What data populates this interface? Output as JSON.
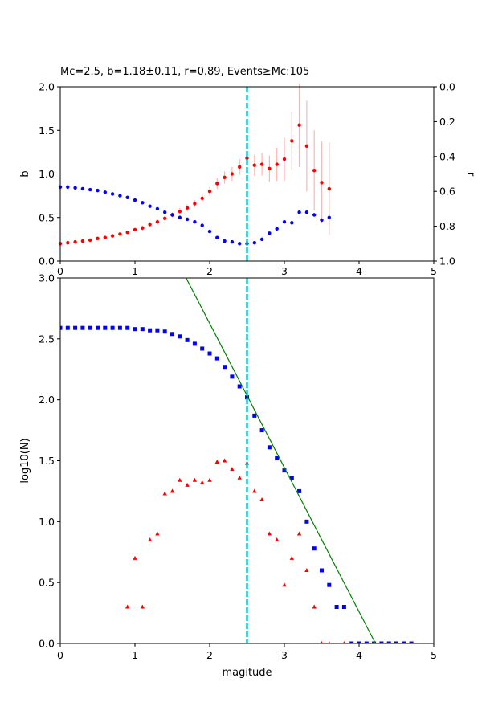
{
  "colors": {
    "b_series": "#ff0000",
    "r_series": "#0000ff",
    "b_errorbar": "#ffb3b3",
    "cumulative": "#0000ff",
    "noncumulative": "#ff0000",
    "fit_line": "#008000",
    "mc_line": "#00bfbf"
  },
  "chart_data": [
    {
      "type": "scatter",
      "title": "Mc=2.5, b=1.18±0.11, r=0.89, Events≥Mc:105",
      "xlabel": "",
      "ylabel": "b",
      "ylabel_right": "r",
      "xlim": [
        0,
        5
      ],
      "ylim": [
        0,
        2
      ],
      "ylim_right": [
        1,
        0
      ],
      "x_ticks": [
        "0",
        "1",
        "2",
        "3",
        "4",
        "5"
      ],
      "y_ticks": [
        "0.0",
        "0.5",
        "1.0",
        "1.5",
        "2.0"
      ],
      "y_ticks_right": [
        "0.0",
        "0.2",
        "0.4",
        "0.6",
        "0.8",
        "1.0"
      ],
      "grid": false,
      "mc_line_x": 2.5,
      "series": [
        {
          "name": "b",
          "axis": "left",
          "marker": "circle",
          "x": [
            0.0,
            0.1,
            0.2,
            0.3,
            0.4,
            0.5,
            0.6,
            0.7,
            0.8,
            0.9,
            1.0,
            1.1,
            1.2,
            1.3,
            1.4,
            1.5,
            1.6,
            1.7,
            1.8,
            1.9,
            2.0,
            2.1,
            2.2,
            2.3,
            2.4,
            2.5,
            2.6,
            2.7,
            2.8,
            2.9,
            3.0,
            3.1,
            3.2,
            3.3,
            3.4,
            3.5,
            3.6
          ],
          "y": [
            0.2,
            0.21,
            0.22,
            0.23,
            0.24,
            0.26,
            0.27,
            0.29,
            0.31,
            0.33,
            0.36,
            0.38,
            0.42,
            0.45,
            0.49,
            0.53,
            0.57,
            0.61,
            0.66,
            0.72,
            0.8,
            0.89,
            0.96,
            1.0,
            1.08,
            1.18,
            1.1,
            1.11,
            1.06,
            1.11,
            1.17,
            1.38,
            1.56,
            1.32,
            1.04,
            0.9,
            0.83
          ],
          "err": [
            0.02,
            0.02,
            0.02,
            0.02,
            0.02,
            0.02,
            0.02,
            0.02,
            0.02,
            0.02,
            0.02,
            0.03,
            0.03,
            0.03,
            0.03,
            0.03,
            0.04,
            0.04,
            0.04,
            0.05,
            0.05,
            0.06,
            0.07,
            0.08,
            0.09,
            0.11,
            0.12,
            0.13,
            0.15,
            0.19,
            0.25,
            0.33,
            0.48,
            0.52,
            0.46,
            0.47,
            0.53
          ]
        },
        {
          "name": "r",
          "axis": "right",
          "marker": "circle",
          "x": [
            0.0,
            0.1,
            0.2,
            0.3,
            0.4,
            0.5,
            0.6,
            0.7,
            0.8,
            0.9,
            1.0,
            1.1,
            1.2,
            1.3,
            1.4,
            1.5,
            1.6,
            1.7,
            1.8,
            1.9,
            2.0,
            2.1,
            2.2,
            2.3,
            2.4,
            2.5,
            2.6,
            2.7,
            2.8,
            2.9,
            3.0,
            3.1,
            3.2,
            3.3,
            3.4,
            3.5,
            3.6
          ],
          "y": [
            0.575,
            0.575,
            0.58,
            0.585,
            0.59,
            0.595,
            0.605,
            0.615,
            0.625,
            0.635,
            0.65,
            0.665,
            0.685,
            0.7,
            0.72,
            0.735,
            0.75,
            0.76,
            0.775,
            0.795,
            0.83,
            0.865,
            0.885,
            0.89,
            0.9,
            0.9,
            0.895,
            0.875,
            0.84,
            0.815,
            0.775,
            0.78,
            0.72,
            0.72,
            0.735,
            0.765,
            0.75
          ]
        }
      ]
    },
    {
      "type": "scatter",
      "title": "",
      "xlabel": "magitude",
      "ylabel": "log10(N)",
      "xlim": [
        0,
        5
      ],
      "ylim": [
        0,
        3
      ],
      "x_ticks": [
        "0",
        "1",
        "2",
        "3",
        "4",
        "5"
      ],
      "y_ticks": [
        "0.0",
        "0.5",
        "1.0",
        "1.5",
        "2.0",
        "2.5",
        "3.0"
      ],
      "grid": false,
      "mc_line_x": 2.5,
      "fit_line": {
        "x": [
          1.6,
          4.22
        ],
        "y": [
          3.1,
          0.0
        ]
      },
      "series": [
        {
          "name": "cumulative",
          "marker": "square",
          "x": [
            0.0,
            0.1,
            0.2,
            0.3,
            0.4,
            0.5,
            0.6,
            0.7,
            0.8,
            0.9,
            1.0,
            1.1,
            1.2,
            1.3,
            1.4,
            1.5,
            1.6,
            1.7,
            1.8,
            1.9,
            2.0,
            2.1,
            2.2,
            2.3,
            2.4,
            2.5,
            2.6,
            2.7,
            2.8,
            2.9,
            3.0,
            3.1,
            3.2,
            3.3,
            3.4,
            3.5,
            3.6,
            3.7,
            3.8,
            3.9,
            4.0,
            4.1,
            4.2,
            4.3,
            4.4,
            4.5,
            4.6,
            4.7
          ],
          "y": [
            2.59,
            2.59,
            2.59,
            2.59,
            2.59,
            2.59,
            2.59,
            2.59,
            2.59,
            2.59,
            2.58,
            2.58,
            2.57,
            2.57,
            2.56,
            2.54,
            2.52,
            2.49,
            2.46,
            2.42,
            2.38,
            2.34,
            2.27,
            2.19,
            2.11,
            2.02,
            1.87,
            1.75,
            1.61,
            1.52,
            1.42,
            1.36,
            1.25,
            1.0,
            0.78,
            0.6,
            0.48,
            0.3,
            0.3,
            0.0,
            0.0,
            0.0,
            0.0,
            0.0,
            0.0,
            0.0,
            0.0,
            0.0
          ]
        },
        {
          "name": "noncumulative",
          "marker": "triangle",
          "x": [
            0.9,
            1.0,
            1.1,
            1.2,
            1.3,
            1.4,
            1.5,
            1.6,
            1.7,
            1.8,
            1.9,
            2.0,
            2.1,
            2.2,
            2.3,
            2.4,
            2.5,
            2.6,
            2.7,
            2.8,
            2.9,
            3.0,
            3.1,
            3.2,
            3.3,
            3.4,
            3.5,
            3.6,
            3.8
          ],
          "y": [
            0.3,
            0.7,
            0.3,
            0.85,
            0.9,
            1.23,
            1.25,
            1.34,
            1.3,
            1.34,
            1.32,
            1.34,
            1.49,
            1.5,
            1.43,
            1.36,
            1.48,
            1.25,
            1.18,
            0.9,
            0.85,
            0.48,
            0.7,
            0.9,
            0.6,
            0.3,
            0.0,
            0.0,
            0.0
          ]
        }
      ]
    }
  ]
}
